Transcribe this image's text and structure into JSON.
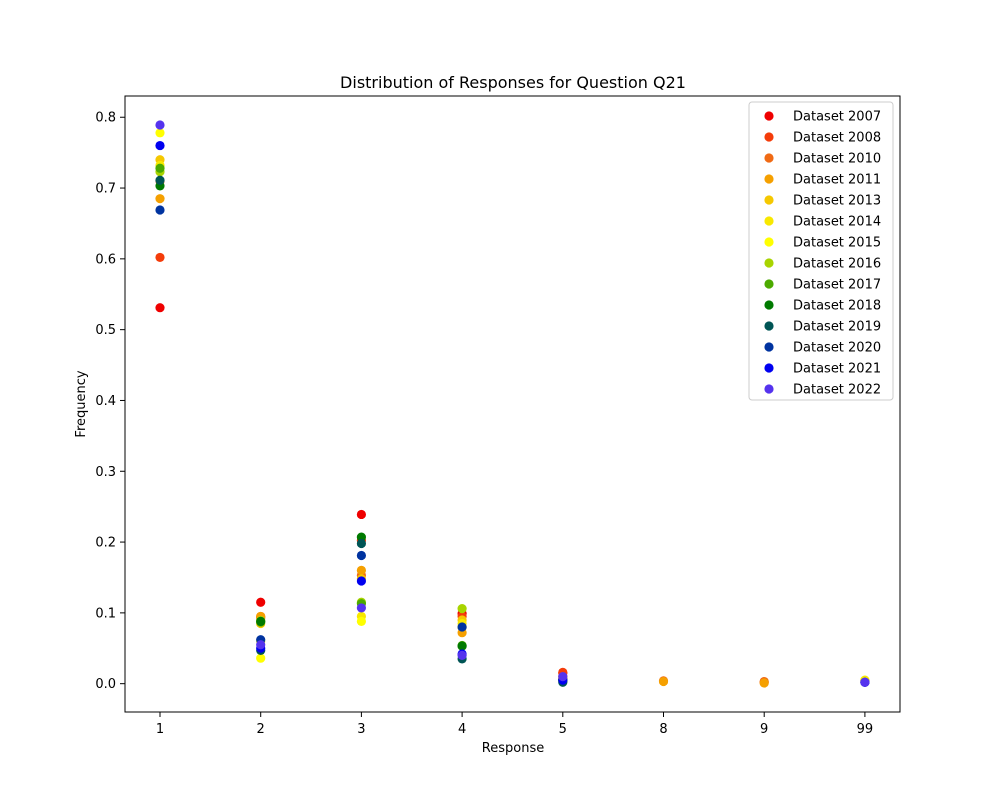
{
  "chart_data": {
    "type": "scatter",
    "title": "Distribution of Responses for Question Q21",
    "xlabel": "Response",
    "ylabel": "Frequency",
    "categories": [
      "1",
      "2",
      "3",
      "4",
      "5",
      "8",
      "9",
      "99"
    ],
    "ylim": [
      -0.04,
      0.83
    ],
    "yticks": [
      "0.0",
      "0.1",
      "0.2",
      "0.3",
      "0.4",
      "0.5",
      "0.6",
      "0.7",
      "0.8"
    ],
    "grid": false,
    "legend_position": "top-right",
    "series": [
      {
        "name": "Dataset 2007",
        "color": "#ef0000",
        "points": [
          [
            "1",
            0.531
          ],
          [
            "2",
            0.115
          ],
          [
            "3",
            0.239
          ],
          [
            "4",
            0.099
          ],
          [
            "5",
            0.015
          ]
        ]
      },
      {
        "name": "Dataset 2008",
        "color": "#f43c0a",
        "points": [
          [
            "1",
            0.602
          ],
          [
            "2",
            0.093
          ],
          [
            "3",
            0.202
          ],
          [
            "4",
            0.095
          ],
          [
            "5",
            0.016
          ],
          [
            "9",
            0.002
          ]
        ]
      },
      {
        "name": "Dataset 2010",
        "color": "#f06a14",
        "points": [
          [
            "1",
            0.71
          ],
          [
            "2",
            0.095
          ],
          [
            "3",
            0.153
          ],
          [
            "4",
            0.08
          ],
          [
            "5",
            0.01
          ],
          [
            "8",
            0.004
          ],
          [
            "9",
            0.003
          ]
        ]
      },
      {
        "name": "Dataset 2011",
        "color": "#f5a000",
        "points": [
          [
            "1",
            0.685
          ],
          [
            "2",
            0.095
          ],
          [
            "3",
            0.16
          ],
          [
            "4",
            0.072
          ],
          [
            "5",
            0.008
          ],
          [
            "8",
            0.003
          ],
          [
            "9",
            0.001
          ]
        ]
      },
      {
        "name": "Dataset 2013",
        "color": "#f5c800",
        "points": [
          [
            "1",
            0.74
          ],
          [
            "2",
            0.085
          ],
          [
            "3",
            0.148
          ],
          [
            "4",
            0.09
          ],
          [
            "5",
            0.006
          ],
          [
            "99",
            0.004
          ]
        ]
      },
      {
        "name": "Dataset 2014",
        "color": "#f8e800",
        "points": [
          [
            "1",
            0.732
          ],
          [
            "2",
            0.06
          ],
          [
            "3",
            0.095
          ],
          [
            "4",
            0.085
          ],
          [
            "5",
            0.005
          ],
          [
            "99",
            0.005
          ]
        ]
      },
      {
        "name": "Dataset 2015",
        "color": "#ffff00",
        "points": [
          [
            "1",
            0.778
          ],
          [
            "2",
            0.036
          ],
          [
            "3",
            0.088
          ],
          [
            "4",
            0.08
          ],
          [
            "5",
            0.004
          ],
          [
            "99",
            0.003
          ]
        ]
      },
      {
        "name": "Dataset 2016",
        "color": "#a8d400",
        "points": [
          [
            "1",
            0.723
          ],
          [
            "2",
            0.089
          ],
          [
            "3",
            0.115
          ],
          [
            "4",
            0.106
          ],
          [
            "5",
            0.005
          ]
        ]
      },
      {
        "name": "Dataset 2017",
        "color": "#4caa00",
        "points": [
          [
            "1",
            0.728
          ],
          [
            "2",
            0.087
          ],
          [
            "3",
            0.113
          ],
          [
            "4",
            0.054
          ],
          [
            "5",
            0.005
          ]
        ]
      },
      {
        "name": "Dataset 2018",
        "color": "#007a00",
        "points": [
          [
            "1",
            0.703
          ],
          [
            "2",
            0.088
          ],
          [
            "3",
            0.207
          ],
          [
            "4",
            0.053
          ],
          [
            "5",
            0.004
          ]
        ]
      },
      {
        "name": "Dataset 2019",
        "color": "#005555",
        "points": [
          [
            "1",
            0.711
          ],
          [
            "2",
            0.047
          ],
          [
            "3",
            0.198
          ],
          [
            "4",
            0.035
          ],
          [
            "5",
            0.002
          ]
        ]
      },
      {
        "name": "Dataset 2020",
        "color": "#0033a0",
        "points": [
          [
            "1",
            0.669
          ],
          [
            "2",
            0.062
          ],
          [
            "3",
            0.181
          ],
          [
            "4",
            0.08
          ],
          [
            "5",
            0.006
          ],
          [
            "99",
            0.002
          ]
        ]
      },
      {
        "name": "Dataset 2021",
        "color": "#0000f0",
        "points": [
          [
            "1",
            0.76
          ],
          [
            "2",
            0.05
          ],
          [
            "3",
            0.145
          ],
          [
            "4",
            0.042
          ],
          [
            "5",
            0.005
          ],
          [
            "99",
            0.002
          ]
        ]
      },
      {
        "name": "Dataset 2022",
        "color": "#5533ee",
        "points": [
          [
            "1",
            0.789
          ],
          [
            "2",
            0.055
          ],
          [
            "3",
            0.107
          ],
          [
            "4",
            0.04
          ],
          [
            "5",
            0.01
          ],
          [
            "99",
            0.002
          ]
        ]
      }
    ]
  }
}
